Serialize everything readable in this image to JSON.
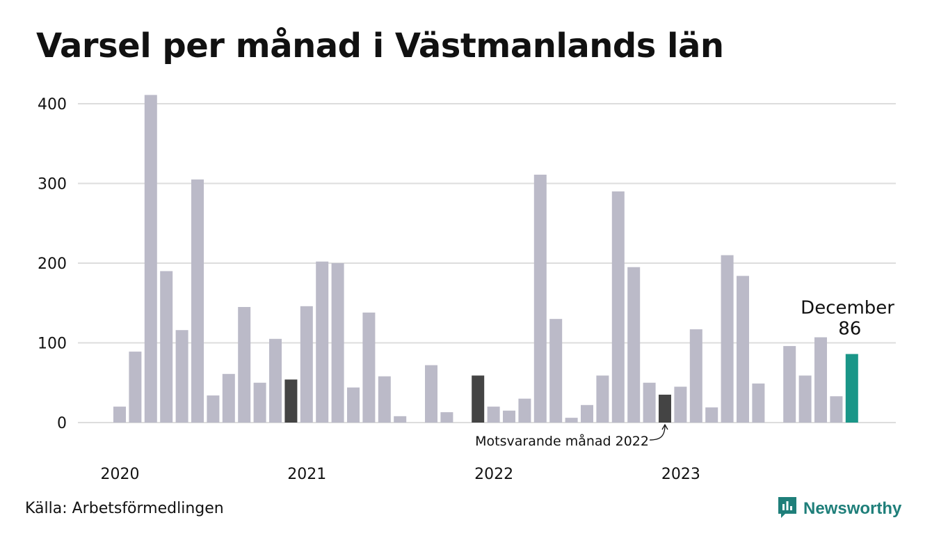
{
  "title": "Varsel per månad i Västmanlands län",
  "source": "Källa: Arbetsförmedlingen",
  "brand": {
    "name": "Newsworthy",
    "icon": "chart-bubble-icon",
    "color": "#1f7f7a"
  },
  "colors": {
    "default": "#bbbac8",
    "highlight_prev": "#444444",
    "highlight_current": "#1a9688",
    "grid": "#dddddd"
  },
  "chart_data": {
    "type": "bar",
    "ylim": [
      0,
      400
    ],
    "yticks": [
      "0",
      "100",
      "200",
      "300",
      "400"
    ],
    "year_labels": [
      {
        "label": "2020",
        "index": 0
      },
      {
        "label": "2021",
        "index": 12
      },
      {
        "label": "2022",
        "index": 24
      },
      {
        "label": "2023",
        "index": 36
      }
    ],
    "categories": [
      "2020-01",
      "2020-02",
      "2020-03",
      "2020-04",
      "2020-05",
      "2020-06",
      "2020-07",
      "2020-08",
      "2020-09",
      "2020-10",
      "2020-11",
      "2020-12",
      "2021-01",
      "2021-02",
      "2021-03",
      "2021-04",
      "2021-05",
      "2021-06",
      "2021-07",
      "2021-08",
      "2021-09",
      "2021-10",
      "2021-11",
      "2021-12",
      "2022-01",
      "2022-02",
      "2022-03",
      "2022-04",
      "2022-05",
      "2022-06",
      "2022-07",
      "2022-08",
      "2022-09",
      "2022-10",
      "2022-11",
      "2022-12",
      "2023-01",
      "2023-02",
      "2023-03",
      "2023-04",
      "2023-05",
      "2023-06",
      "2023-07",
      "2023-08",
      "2023-09",
      "2023-10",
      "2023-11",
      "2023-12"
    ],
    "values": [
      20,
      89,
      411,
      190,
      116,
      305,
      34,
      61,
      145,
      50,
      105,
      54,
      146,
      202,
      200,
      44,
      138,
      58,
      8,
      0,
      72,
      13,
      0,
      59,
      20,
      15,
      30,
      311,
      130,
      6,
      22,
      59,
      290,
      195,
      50,
      35,
      45,
      117,
      19,
      210,
      184,
      49,
      0,
      96,
      59,
      107,
      33,
      86
    ],
    "highlight_prev_indices": [
      11,
      23,
      35
    ],
    "highlight_current_index": 47,
    "annotation": "Motsvarande månad 2022",
    "callout": {
      "label": "December",
      "value": "86"
    }
  }
}
